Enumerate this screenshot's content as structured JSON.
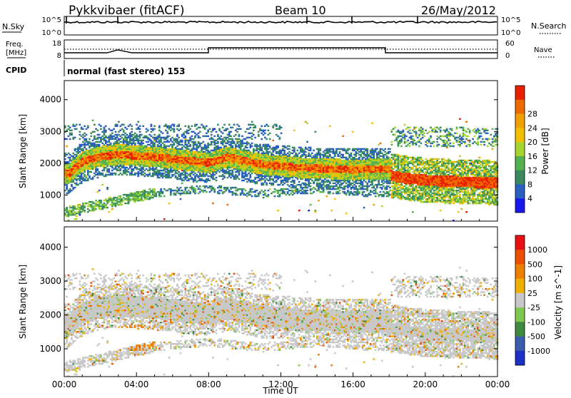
{
  "header": {
    "station": "Pykkvibaer (fitACF)",
    "beam": "Beam 10",
    "date": "26/May/2012"
  },
  "strip": {
    "nsky_label": "N.Sky",
    "nsky_ticks": [
      "10^5",
      "10^0"
    ],
    "nsearch_label": "N.Search",
    "nsearch_ticks": [
      "10^5",
      "10^0"
    ],
    "freq_label_1": "Freq.",
    "freq_label_2": "[MHz]",
    "freq_ticks": [
      "18",
      "8"
    ],
    "nave_label": "Nave",
    "nave_ticks": [
      "60",
      "0"
    ],
    "cpid_label": "CPID",
    "cpid_text": "normal (fast stereo) 153"
  },
  "chart_data": [
    {
      "type": "heatmap",
      "name": "power-panel",
      "ylabel": "Slant Range [km]",
      "yticks": [
        "1000",
        "2000",
        "3000",
        "4000"
      ],
      "ylim": [
        180,
        4600
      ],
      "colorbar_label": "Power [dB]",
      "colorbar_ticks": [
        "4",
        "8",
        "12",
        "16",
        "20",
        "24",
        "28"
      ],
      "colors": [
        "#1818ee",
        "#2a5fc0",
        "#3a8a60",
        "#55b050",
        "#a8d430",
        "#f2c000",
        "#f0a000",
        "#ee6a00",
        "#e82000"
      ],
      "features": [
        {
          "label": "main echo band",
          "t": [
            0.2,
            1,
            2,
            3,
            4,
            5,
            6,
            7,
            8,
            9,
            10,
            11,
            12,
            13,
            14,
            15,
            16,
            17,
            18
          ],
          "range_km": [
            1650,
            2050,
            2200,
            2260,
            2220,
            2180,
            2120,
            2050,
            2000,
            2180,
            2050,
            1940,
            1900,
            1840,
            1820,
            1800,
            1780,
            1800,
            1800
          ]
        },
        {
          "label": "strong post-18h band",
          "t": [
            18,
            19,
            20,
            21,
            22,
            23,
            24
          ],
          "range_km": [
            1600,
            1500,
            1450,
            1420,
            1400,
            1380,
            1360
          ]
        }
      ]
    },
    {
      "type": "heatmap",
      "name": "velocity-panel",
      "ylabel": "Slant Range [km]",
      "yticks": [
        "1000",
        "2000",
        "3000",
        "4000"
      ],
      "ylim": [
        180,
        4600
      ],
      "colorbar_label": "Velocity [m s^-1]",
      "colorbar_ticks": [
        "1000",
        "500",
        "100",
        "25",
        "-25",
        "-100",
        "-500",
        "-1000"
      ],
      "colors": [
        "#1c30c8",
        "#3a5dae",
        "#3e8a3e",
        "#7ec850",
        "#c8c8c8",
        "#f0b000",
        "#ee8000",
        "#ea5000",
        "#e81010"
      ],
      "xlabel": "Time UT",
      "xticks": [
        "00:00",
        "04:00",
        "08:00",
        "12:00",
        "16:00",
        "20:00",
        "00:00"
      ],
      "xlim": [
        0,
        24
      ]
    }
  ],
  "colors": {
    "axis": "#000000",
    "ground_scatter": "#c8c8c8"
  }
}
